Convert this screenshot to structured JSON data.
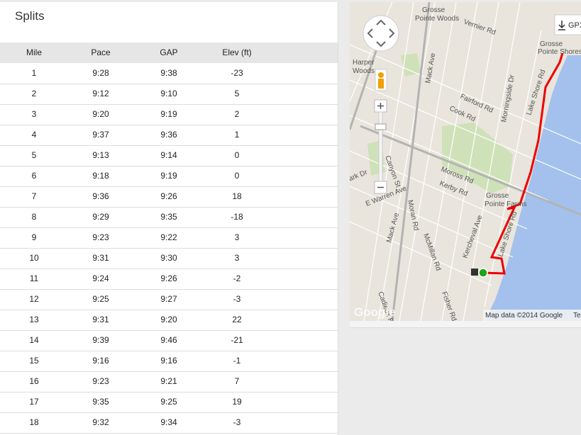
{
  "splits": {
    "title": "Splits",
    "headers": [
      "Mile",
      "Pace",
      "GAP",
      "Elev (ft)"
    ],
    "rows": [
      [
        1,
        "9:28",
        "9:38",
        -23
      ],
      [
        2,
        "9:12",
        "9:10",
        5
      ],
      [
        3,
        "9:20",
        "9:19",
        2
      ],
      [
        4,
        "9:37",
        "9:36",
        1
      ],
      [
        5,
        "9:13",
        "9:14",
        0
      ],
      [
        6,
        "9:18",
        "9:19",
        0
      ],
      [
        7,
        "9:36",
        "9:26",
        18
      ],
      [
        8,
        "9:29",
        "9:35",
        -18
      ],
      [
        9,
        "9:23",
        "9:22",
        3
      ],
      [
        10,
        "9:31",
        "9:30",
        3
      ],
      [
        11,
        "9:24",
        "9:26",
        -2
      ],
      [
        12,
        "9:25",
        "9:27",
        -3
      ],
      [
        13,
        "9:31",
        "9:20",
        22
      ],
      [
        14,
        "9:39",
        "9:46",
        -21
      ],
      [
        15,
        "9:16",
        "9:16",
        -1
      ],
      [
        16,
        "9:23",
        "9:21",
        7
      ],
      [
        17,
        "9:35",
        "9:25",
        19
      ],
      [
        18,
        "9:32",
        "9:34",
        -3
      ]
    ]
  },
  "map": {
    "gpx_button": "GPX",
    "attribution": "Map data ©2014 Google",
    "terms": "Terms of Use",
    "logo": "Google",
    "labels": [
      "Grosse",
      "Pointe Woods",
      "Vernier Rd",
      "Harper",
      "Woods",
      "Mack Ave",
      "Fairford Rd",
      "Morningside Dr",
      "Cook Rd",
      "Lake Shore Rd",
      "Grosse",
      "Pointe Shores",
      "Moross Rd",
      "Kerby Rd",
      "Grosse",
      "Pointe Farms",
      "Canyon St",
      "E Warren Ave",
      "Moran Rd",
      "McMillan Rd",
      "Kercheval Ave",
      "Cadieux Rd",
      "Fisher Rd",
      "Park Dr",
      "Mack Ave",
      "Lake Shore Rd"
    ]
  }
}
